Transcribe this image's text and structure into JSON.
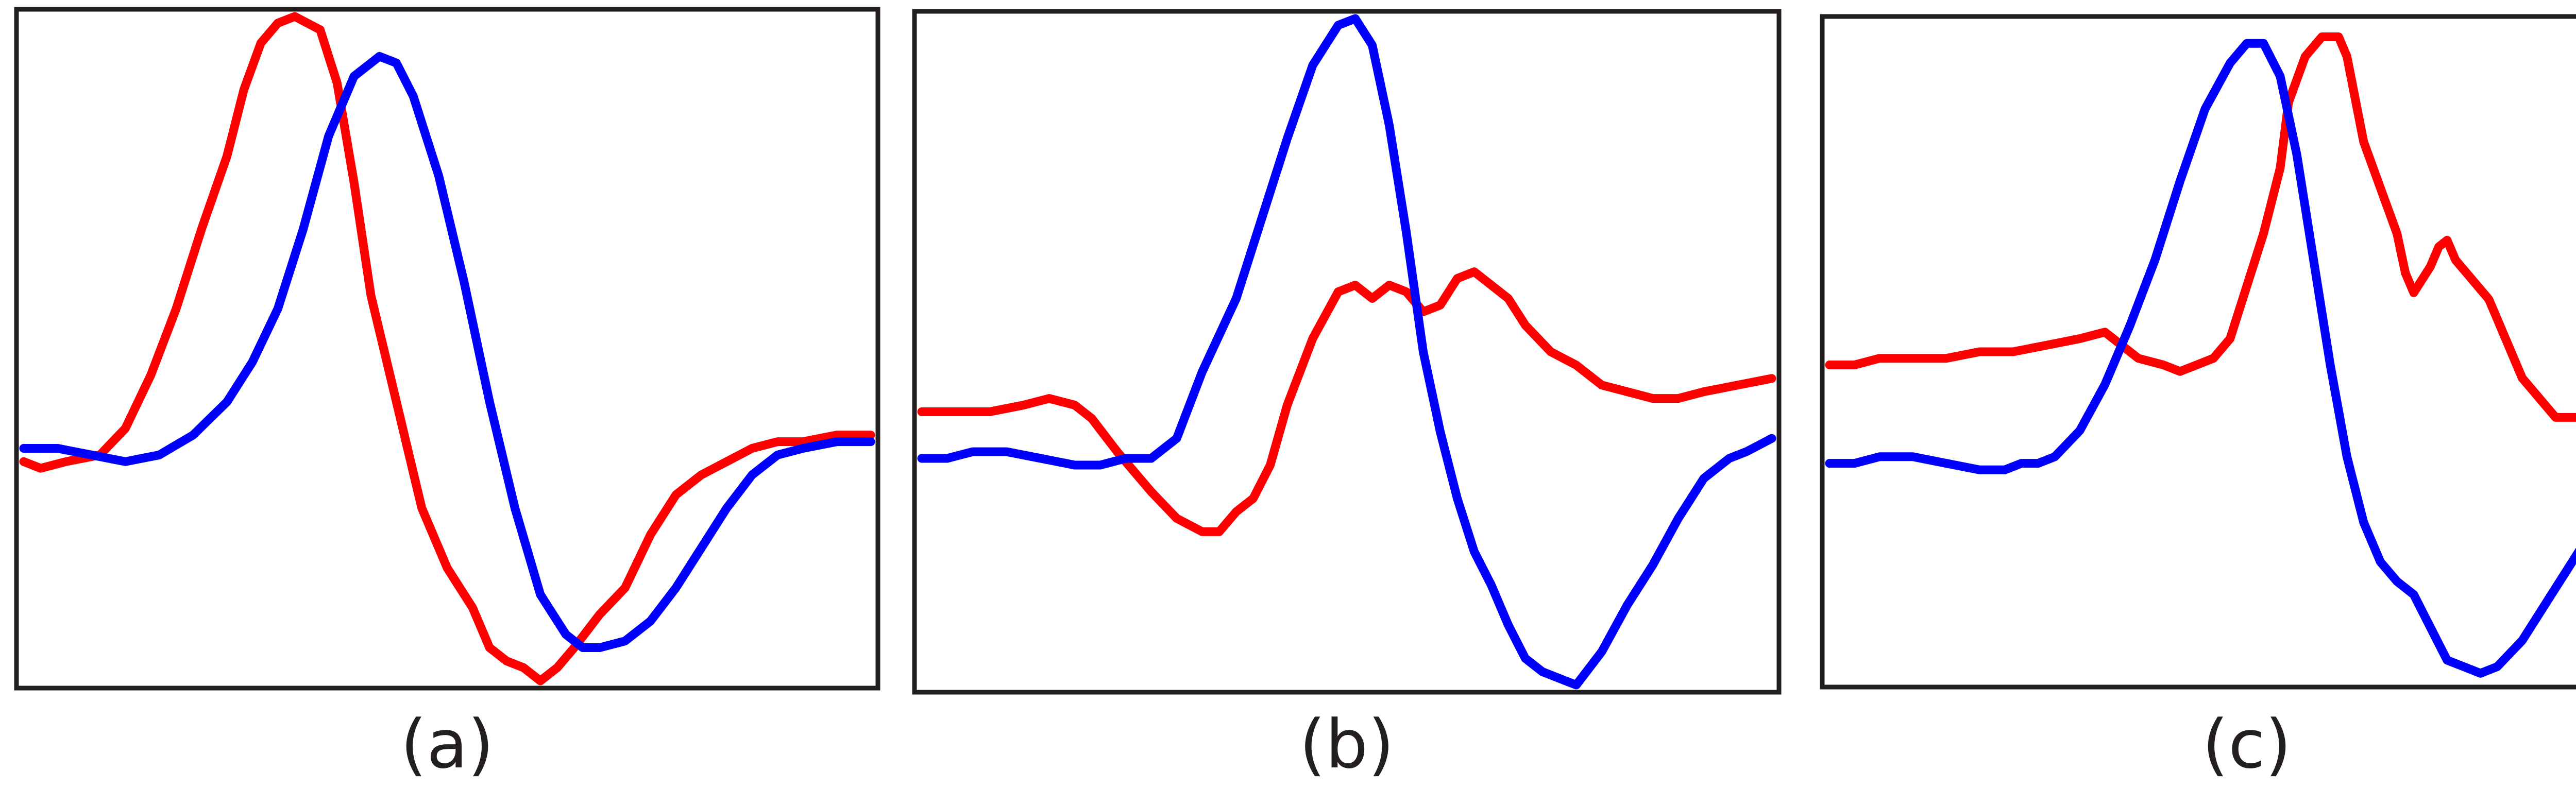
{
  "chart_data": [
    {
      "type": "line",
      "caption": "(a)",
      "xlim": [
        0,
        100
      ],
      "ylim": [
        0,
        100
      ],
      "series": [
        {
          "color": "#ff0000",
          "points": [
            [
              0,
              33
            ],
            [
              2,
              32
            ],
            [
              5,
              33
            ],
            [
              9,
              34
            ],
            [
              12,
              38
            ],
            [
              15,
              46
            ],
            [
              18,
              56
            ],
            [
              21,
              68
            ],
            [
              24,
              79
            ],
            [
              26,
              89
            ],
            [
              28,
              96
            ],
            [
              30,
              99
            ],
            [
              32,
              100
            ],
            [
              35,
              98
            ],
            [
              37,
              90
            ],
            [
              39,
              75
            ],
            [
              41,
              58
            ],
            [
              44,
              42
            ],
            [
              47,
              26
            ],
            [
              50,
              17
            ],
            [
              53,
              11
            ],
            [
              55,
              5
            ],
            [
              57,
              3
            ],
            [
              59,
              2
            ],
            [
              61,
              0
            ],
            [
              63,
              2
            ],
            [
              65,
              5
            ],
            [
              68,
              10
            ],
            [
              71,
              14
            ],
            [
              74,
              22
            ],
            [
              77,
              28
            ],
            [
              80,
              31
            ],
            [
              83,
              33
            ],
            [
              86,
              35
            ],
            [
              89,
              36
            ],
            [
              92,
              36
            ],
            [
              96,
              37
            ],
            [
              100,
              37
            ]
          ]
        },
        {
          "color": "#0000ff",
          "points": [
            [
              0,
              35
            ],
            [
              4,
              35
            ],
            [
              8,
              34
            ],
            [
              12,
              33
            ],
            [
              16,
              34
            ],
            [
              20,
              37
            ],
            [
              24,
              42
            ],
            [
              27,
              48
            ],
            [
              30,
              56
            ],
            [
              33,
              68
            ],
            [
              36,
              82
            ],
            [
              39,
              91
            ],
            [
              42,
              94
            ],
            [
              44,
              93
            ],
            [
              46,
              88
            ],
            [
              49,
              76
            ],
            [
              52,
              60
            ],
            [
              55,
              42
            ],
            [
              58,
              26
            ],
            [
              61,
              13
            ],
            [
              64,
              7
            ],
            [
              66,
              5
            ],
            [
              68,
              5
            ],
            [
              71,
              6
            ],
            [
              74,
              9
            ],
            [
              77,
              14
            ],
            [
              80,
              20
            ],
            [
              83,
              26
            ],
            [
              86,
              31
            ],
            [
              89,
              34
            ],
            [
              92,
              35
            ],
            [
              96,
              36
            ],
            [
              100,
              36
            ]
          ]
        }
      ]
    },
    {
      "type": "line",
      "caption": "(b)",
      "xlim": [
        0,
        100
      ],
      "ylim": [
        0,
        100
      ],
      "series": [
        {
          "color": "#ff0000",
          "points": [
            [
              0,
              41
            ],
            [
              4,
              41
            ],
            [
              8,
              41
            ],
            [
              12,
              42
            ],
            [
              15,
              43
            ],
            [
              18,
              42
            ],
            [
              20,
              40
            ],
            [
              23,
              35
            ],
            [
              27,
              29
            ],
            [
              30,
              25
            ],
            [
              33,
              23
            ],
            [
              35,
              23
            ],
            [
              37,
              26
            ],
            [
              39,
              28
            ],
            [
              41,
              33
            ],
            [
              43,
              42
            ],
            [
              46,
              52
            ],
            [
              49,
              59
            ],
            [
              51,
              60
            ],
            [
              53,
              58
            ],
            [
              55,
              60
            ],
            [
              57,
              59
            ],
            [
              59,
              56
            ],
            [
              61,
              57
            ],
            [
              63,
              61
            ],
            [
              65,
              62
            ],
            [
              67,
              60
            ],
            [
              69,
              58
            ],
            [
              71,
              54
            ],
            [
              74,
              50
            ],
            [
              77,
              48
            ],
            [
              80,
              45
            ],
            [
              83,
              44
            ],
            [
              86,
              43
            ],
            [
              89,
              43
            ],
            [
              92,
              44
            ],
            [
              96,
              45
            ],
            [
              100,
              46
            ]
          ]
        },
        {
          "color": "#0000ff",
          "points": [
            [
              0,
              34
            ],
            [
              3,
              34
            ],
            [
              6,
              35
            ],
            [
              10,
              35
            ],
            [
              14,
              34
            ],
            [
              18,
              33
            ],
            [
              21,
              33
            ],
            [
              24,
              34
            ],
            [
              27,
              34
            ],
            [
              30,
              37
            ],
            [
              33,
              47
            ],
            [
              37,
              58
            ],
            [
              40,
              70
            ],
            [
              43,
              82
            ],
            [
              46,
              93
            ],
            [
              49,
              99
            ],
            [
              51,
              100
            ],
            [
              53,
              96
            ],
            [
              55,
              84
            ],
            [
              57,
              68
            ],
            [
              59,
              50
            ],
            [
              61,
              38
            ],
            [
              63,
              28
            ],
            [
              65,
              20
            ],
            [
              67,
              15
            ],
            [
              69,
              9
            ],
            [
              71,
              4
            ],
            [
              73,
              2
            ],
            [
              75,
              1
            ],
            [
              77,
              0
            ],
            [
              80,
              5
            ],
            [
              83,
              12
            ],
            [
              86,
              18
            ],
            [
              89,
              25
            ],
            [
              92,
              31
            ],
            [
              95,
              34
            ],
            [
              97,
              35
            ],
            [
              100,
              37
            ]
          ]
        }
      ]
    },
    {
      "type": "line",
      "caption": "(c)",
      "xlim": [
        0,
        100
      ],
      "ylim": [
        0,
        100
      ],
      "series": [
        {
          "color": "#ff0000",
          "points": [
            [
              0,
              48
            ],
            [
              3,
              48
            ],
            [
              6,
              49
            ],
            [
              10,
              49
            ],
            [
              14,
              49
            ],
            [
              18,
              50
            ],
            [
              22,
              50
            ],
            [
              26,
              51
            ],
            [
              30,
              52
            ],
            [
              33,
              53
            ],
            [
              35,
              51
            ],
            [
              37,
              49
            ],
            [
              40,
              48
            ],
            [
              42,
              47
            ],
            [
              44,
              48
            ],
            [
              46,
              49
            ],
            [
              48,
              52
            ],
            [
              50,
              60
            ],
            [
              52,
              68
            ],
            [
              54,
              78
            ],
            [
              55,
              88
            ],
            [
              57,
              95
            ],
            [
              59,
              98
            ],
            [
              61,
              98
            ],
            [
              62,
              95
            ],
            [
              64,
              82
            ],
            [
              66,
              75
            ],
            [
              68,
              68
            ],
            [
              69,
              62
            ],
            [
              70,
              59
            ],
            [
              71,
              61
            ],
            [
              72,
              63
            ],
            [
              73,
              66
            ],
            [
              74,
              67
            ],
            [
              75,
              64
            ],
            [
              77,
              61
            ],
            [
              79,
              58
            ],
            [
              81,
              52
            ],
            [
              83,
              46
            ],
            [
              85,
              43
            ],
            [
              87,
              40
            ],
            [
              89,
              40
            ],
            [
              91,
              40
            ],
            [
              94,
              42
            ],
            [
              97,
              44
            ],
            [
              100,
              45
            ]
          ]
        },
        {
          "color": "#0000ff",
          "points": [
            [
              0,
              33
            ],
            [
              3,
              33
            ],
            [
              6,
              34
            ],
            [
              10,
              34
            ],
            [
              14,
              33
            ],
            [
              18,
              32
            ],
            [
              21,
              32
            ],
            [
              23,
              33
            ],
            [
              25,
              33
            ],
            [
              27,
              34
            ],
            [
              30,
              38
            ],
            [
              33,
              45
            ],
            [
              36,
              54
            ],
            [
              39,
              64
            ],
            [
              42,
              76
            ],
            [
              45,
              87
            ],
            [
              48,
              94
            ],
            [
              50,
              97
            ],
            [
              52,
              97
            ],
            [
              54,
              92
            ],
            [
              56,
              80
            ],
            [
              58,
              64
            ],
            [
              60,
              48
            ],
            [
              62,
              34
            ],
            [
              64,
              24
            ],
            [
              66,
              18
            ],
            [
              68,
              15
            ],
            [
              70,
              13
            ],
            [
              72,
              8
            ],
            [
              74,
              3
            ],
            [
              76,
              2
            ],
            [
              78,
              1
            ],
            [
              80,
              2
            ],
            [
              83,
              6
            ],
            [
              86,
              12
            ],
            [
              89,
              18
            ],
            [
              92,
              24
            ],
            [
              95,
              29
            ],
            [
              97,
              31
            ],
            [
              100,
              35
            ]
          ]
        }
      ]
    }
  ]
}
